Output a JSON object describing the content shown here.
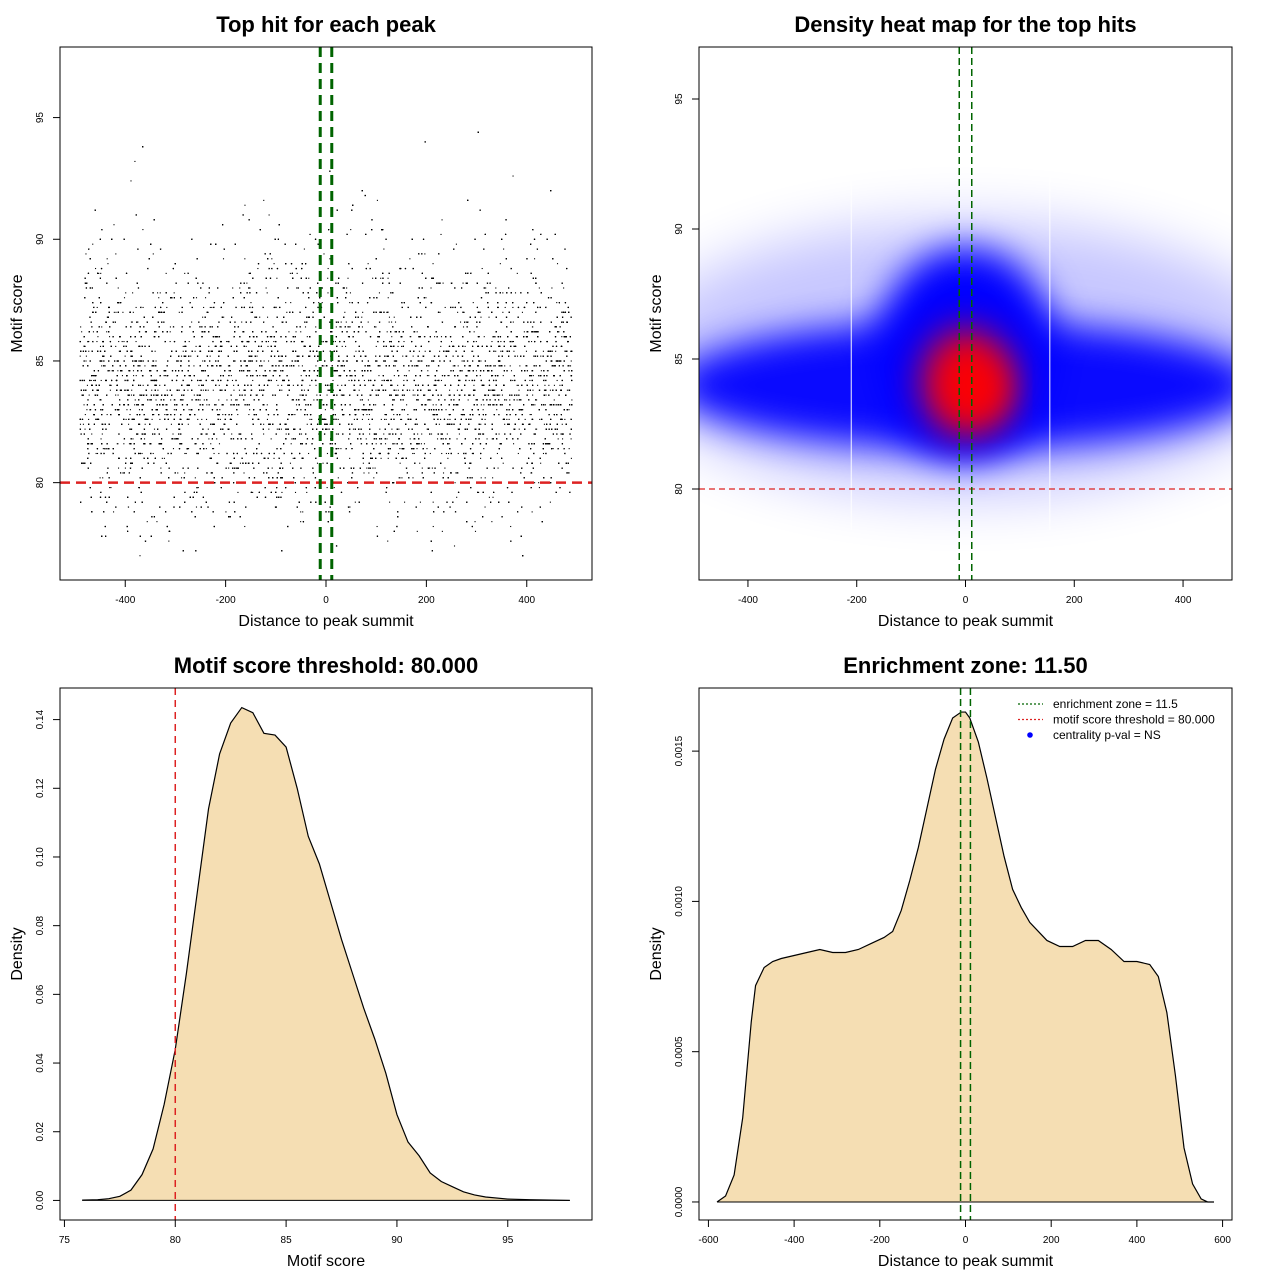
{
  "chart_data": [
    {
      "type": "scatter",
      "title": "Top hit for each peak",
      "xlabel": "Distance to peak summit",
      "ylabel": "Motif score",
      "xlim": [
        -530,
        530
      ],
      "ylim": [
        76.0,
        97.9
      ],
      "xticks": [
        -400,
        -200,
        0,
        200,
        400
      ],
      "yticks": [
        80,
        85,
        90,
        95
      ],
      "x_range_of_points": [
        -490,
        490
      ],
      "y_range_of_points": [
        77,
        97
      ],
      "density_peak": {
        "x": 0,
        "y": 84
      },
      "vlines": {
        "x": [
          -11.5,
          11.5
        ],
        "color": "#006400",
        "style": "dashed"
      },
      "hline": {
        "y": 80,
        "color": "#dd2222",
        "style": "dashed"
      },
      "point_color": "#000000",
      "grid": false,
      "legend": "none"
    },
    {
      "type": "heatmap",
      "title": "Density heat map for the top hits",
      "xlabel": "Distance to peak summit",
      "ylabel": "Motif score",
      "xlim": [
        -490,
        490
      ],
      "ylim": [
        76.5,
        97
      ],
      "xticks": [
        -400,
        -200,
        0,
        200,
        400
      ],
      "yticks": [
        80,
        85,
        90,
        95
      ],
      "density_peak": {
        "x": 25,
        "y": 83.8
      },
      "colors": [
        "#ffffff",
        "#0000ff",
        "#ff0000"
      ],
      "vlines": {
        "x": [
          -11.5,
          11.5
        ],
        "color": "#006400",
        "style": "dashed"
      },
      "hline": {
        "y": 80,
        "color": "#dd2222",
        "style": "dashed"
      },
      "grid": false,
      "legend": "none"
    },
    {
      "type": "area",
      "title": "Motif score threshold: 80.000",
      "xlabel": "Motif score",
      "ylabel": "Density",
      "xlim": [
        74.8,
        98.8
      ],
      "ylim": [
        -0.0057,
        0.1492
      ],
      "xticks": [
        75,
        80,
        85,
        90,
        95
      ],
      "yticks": [
        0.0,
        0.02,
        0.04,
        0.06,
        0.08,
        0.1,
        0.12,
        0.14
      ],
      "ytick_labels": [
        "0.00",
        "0.02",
        "0.04",
        "0.06",
        "0.08",
        "0.10",
        "0.12",
        "0.14"
      ],
      "fill_color": "#f5deb3",
      "vline": {
        "x": 80,
        "color": "#dd2222",
        "style": "dashed"
      },
      "x": [
        75.8,
        76.5,
        77,
        77.5,
        78,
        78.5,
        79,
        79.5,
        80,
        80.5,
        81,
        81.5,
        82,
        82.5,
        83,
        83.5,
        84,
        84.5,
        85,
        85.5,
        86,
        86.5,
        87,
        87.5,
        88,
        88.5,
        89,
        89.5,
        90,
        90.5,
        91,
        91.5,
        92,
        92.5,
        93,
        93.5,
        94,
        95,
        96,
        97,
        97.8
      ],
      "y": [
        0.0001,
        0.0002,
        0.0005,
        0.0012,
        0.003,
        0.0075,
        0.015,
        0.028,
        0.044,
        0.066,
        0.09,
        0.114,
        0.13,
        0.139,
        0.1435,
        0.142,
        0.136,
        0.1355,
        0.132,
        0.12,
        0.106,
        0.098,
        0.087,
        0.076,
        0.066,
        0.056,
        0.047,
        0.037,
        0.025,
        0.017,
        0.013,
        0.008,
        0.0055,
        0.004,
        0.0025,
        0.0016,
        0.001,
        0.0004,
        0.0002,
        0.0001,
        0.0
      ],
      "grid": false,
      "legend": "none"
    },
    {
      "type": "area",
      "title": "Enrichment zone: 11.50",
      "xlabel": "Distance to peak summit",
      "ylabel": "Density",
      "xlim": [
        -622,
        622
      ],
      "ylim": [
        -6e-05,
        0.00171
      ],
      "xticks": [
        -600,
        -400,
        -200,
        0,
        200,
        400,
        600
      ],
      "yticks": [
        0,
        0.0005,
        0.001,
        0.0015
      ],
      "ytick_labels": [
        "0.0000",
        "0.0005",
        "0.0010",
        "0.0015"
      ],
      "fill_color": "#f5deb3",
      "vlines": {
        "x": [
          -11.5,
          11.5
        ],
        "color": "#006400",
        "style": "dashed"
      },
      "x": [
        -580,
        -560,
        -540,
        -520,
        -500,
        -490,
        -470,
        -450,
        -430,
        -400,
        -370,
        -340,
        -310,
        -280,
        -250,
        -220,
        -190,
        -170,
        -150,
        -130,
        -110,
        -90,
        -70,
        -50,
        -30,
        -10,
        0,
        10,
        30,
        50,
        70,
        90,
        110,
        130,
        150,
        170,
        190,
        220,
        250,
        280,
        310,
        340,
        370,
        400,
        430,
        450,
        470,
        490,
        510,
        530,
        550,
        565,
        580
      ],
      "y": [
        0.0,
        2e-05,
        9e-05,
        0.00028,
        0.0006,
        0.00072,
        0.00078,
        0.0008,
        0.00081,
        0.00082,
        0.00083,
        0.00084,
        0.00083,
        0.00083,
        0.00084,
        0.00086,
        0.00088,
        0.0009,
        0.00097,
        0.00107,
        0.00118,
        0.00131,
        0.00144,
        0.00154,
        0.00161,
        0.00163,
        0.00163,
        0.00161,
        0.00153,
        0.00141,
        0.00128,
        0.00115,
        0.00104,
        0.00098,
        0.00093,
        0.0009,
        0.00087,
        0.00085,
        0.00085,
        0.00087,
        0.00087,
        0.00084,
        0.0008,
        0.0008,
        0.00079,
        0.00075,
        0.00063,
        0.00042,
        0.00018,
        6e-05,
        1e-05,
        0.0,
        0.0
      ],
      "legend_entries": [
        {
          "label": "enrichment zone = 11.5",
          "color": "#006400",
          "symbol": "dotted-line"
        },
        {
          "label": "motif score threshold = 80.000",
          "color": "#dd2222",
          "symbol": "dotted-line"
        },
        {
          "label": "centrality p-val = NS",
          "color": "#0000ff",
          "symbol": "dot"
        }
      ],
      "legend_position": "top-right",
      "grid": false
    }
  ]
}
